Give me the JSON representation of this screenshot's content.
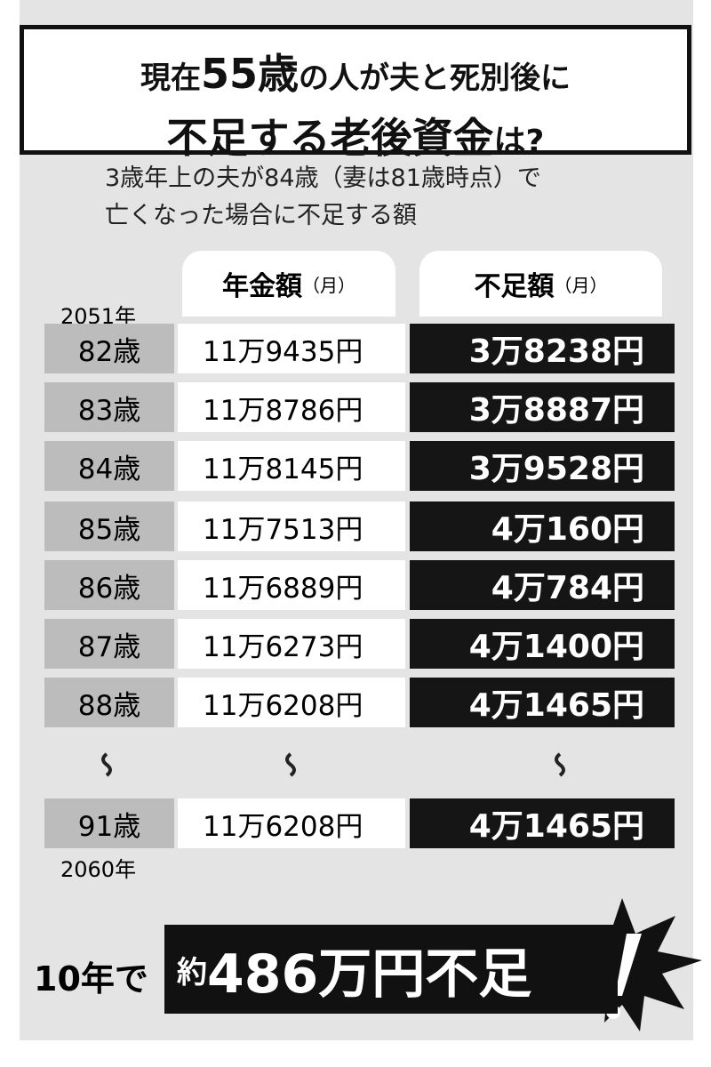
{
  "header": {
    "line1": {
      "before": "現在",
      "emphasis": "55歳",
      "after": "の人が夫と死別後に"
    },
    "line2": {
      "main": "不足する老後資金",
      "tail": "は?"
    }
  },
  "subtitle": [
    "3歳年上の夫が84歳（妻は81歳時点）で",
    "亡くなった場合に不足する額"
  ],
  "table": {
    "columns": [
      {
        "label": "年金額",
        "unit": "（月）"
      },
      {
        "label": "不足額",
        "unit": "（月）"
      }
    ],
    "start_year": "2051年",
    "end_year": "2060年",
    "rows": [
      [
        "82歳",
        "11万9435円",
        "3万8238円"
      ],
      [
        "83歳",
        "11万8786円",
        "3万8887円"
      ],
      [
        "84歳",
        "11万8145円",
        "3万9528円"
      ],
      [
        "85歳",
        "11万7513円",
        "4万160円"
      ],
      [
        "86歳",
        "11万6889円",
        "4万784円"
      ],
      [
        "87歳",
        "11万6273円",
        "4万1400円"
      ],
      [
        "88歳",
        "11万6208円",
        "4万1465円"
      ],
      [
        "91歳",
        "11万6208円",
        "4万1465円"
      ]
    ]
  },
  "footer": {
    "lead": "10年で",
    "prefix": "約",
    "amount": "486万円不足"
  }
}
